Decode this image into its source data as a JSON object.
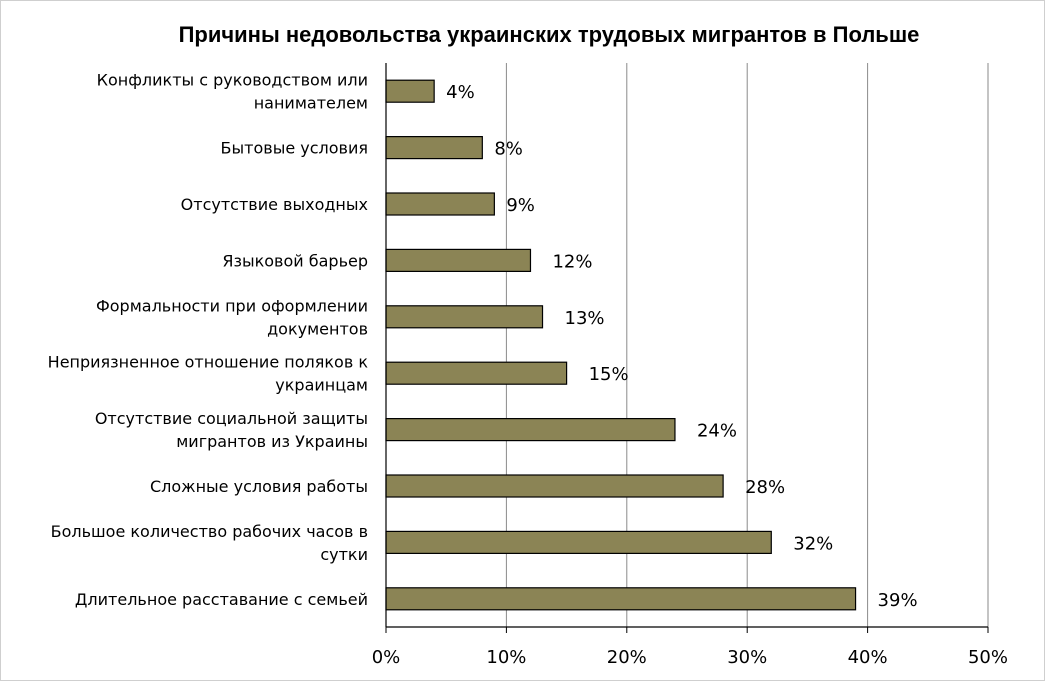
{
  "chart_data": {
    "type": "bar",
    "orientation": "horizontal",
    "title": "Причины недовольства украинских трудовых мигрантов  в Польше",
    "xlabel": "",
    "ylabel": "",
    "xlim": [
      0,
      50
    ],
    "x_ticks": [
      "0%",
      "10%",
      "20%",
      "30%",
      "40%",
      "50%"
    ],
    "grid": "vertical",
    "legend": "none",
    "bar_color": "#8b8455",
    "bar_edge_color": "#000000",
    "categories": [
      [
        "Конфликты с руководством или",
        "нанимателем"
      ],
      [
        "Бытовые условия"
      ],
      [
        "Отсутствие выходных"
      ],
      [
        "Языковой барьер"
      ],
      [
        "Формальности при оформлении",
        "документов"
      ],
      [
        "Неприязненное отношение поляков к",
        "украинцам"
      ],
      [
        "Отсутствие социальной защиты",
        "мигрантов из Украины"
      ],
      [
        "Сложные условия работы"
      ],
      [
        "Большое количество рабочих часов в",
        "сутки"
      ],
      [
        "Длительное расставание с семьей"
      ]
    ],
    "values": [
      4,
      8,
      9,
      12,
      13,
      15,
      24,
      28,
      32,
      39
    ],
    "value_labels": [
      "4%",
      "8%",
      "9%",
      "12%",
      "13%",
      "15%",
      "24%",
      "28%",
      "32%",
      "39%"
    ]
  }
}
